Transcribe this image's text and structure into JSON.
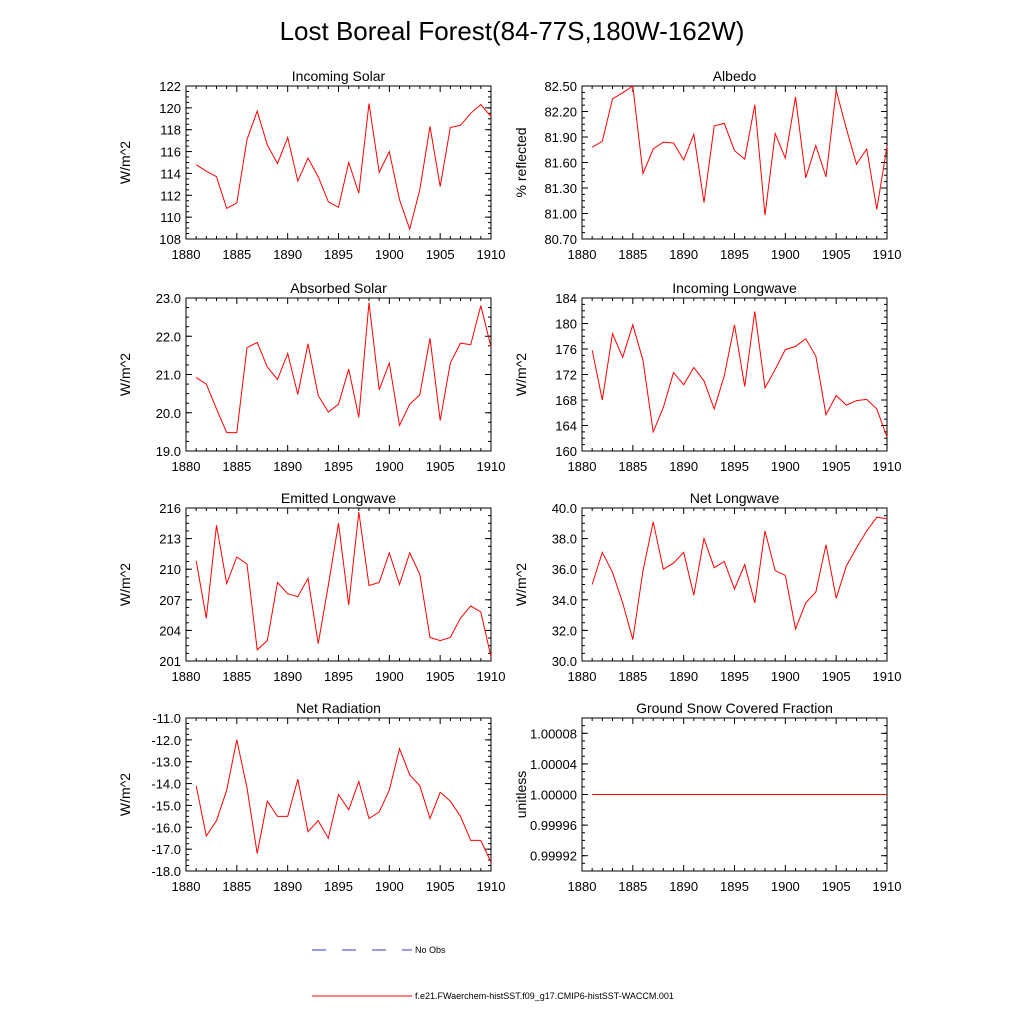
{
  "title": "Lost Boreal Forest(84-77S,180W-162W)",
  "colors": {
    "model": "#ff0000",
    "obs": "#3333cc",
    "axis": "#000000"
  },
  "legend": {
    "obs_label": "No Obs",
    "model_label": "f.e21.FWaerchem-histSST.f09_g17.CMIP6-histSST-WACCM.001"
  },
  "chart_data": [
    {
      "type": "line",
      "title": "Incoming Solar",
      "ylabel": "W/m^2",
      "xlim": [
        1880,
        1910
      ],
      "xticks": [
        "1880",
        "1885",
        "1890",
        "1895",
        "1900",
        "1905",
        "1910"
      ],
      "ylim": [
        108,
        122
      ],
      "yticks": [
        "108",
        "110",
        "112",
        "114",
        "116",
        "118",
        "120",
        "122"
      ],
      "x": [
        1881,
        1882,
        1883,
        1884,
        1885,
        1886,
        1887,
        1888,
        1889,
        1890,
        1891,
        1892,
        1893,
        1894,
        1895,
        1896,
        1897,
        1898,
        1899,
        1900,
        1901,
        1902,
        1903,
        1904,
        1905,
        1906,
        1907,
        1908,
        1909,
        1910
      ],
      "series": [
        {
          "values": [
            114.8,
            114.2,
            113.7,
            110.8,
            111.3,
            117.1,
            119.7,
            116.6,
            114.9,
            117.3,
            113.3,
            115.4,
            113.7,
            111.4,
            110.9,
            115.0,
            112.2,
            120.4,
            114.1,
            116.0,
            111.6,
            108.9,
            112.5,
            118.3,
            112.8,
            118.2,
            118.4,
            119.5,
            120.3,
            119.2
          ]
        }
      ]
    },
    {
      "type": "line",
      "title": "Albedo",
      "ylabel": "% reflected",
      "xlim": [
        1880,
        1910
      ],
      "xticks": [
        "1880",
        "1885",
        "1890",
        "1895",
        "1900",
        "1905",
        "1910"
      ],
      "ylim": [
        80.7,
        82.5
      ],
      "yticks": [
        "80.70",
        "81.00",
        "81.30",
        "81.60",
        "81.90",
        "82.20",
        "82.50"
      ],
      "x": [
        1881,
        1882,
        1883,
        1884,
        1885,
        1886,
        1887,
        1888,
        1889,
        1890,
        1891,
        1892,
        1893,
        1894,
        1895,
        1896,
        1897,
        1898,
        1899,
        1900,
        1901,
        1902,
        1903,
        1904,
        1905,
        1906,
        1907,
        1908,
        1909,
        1910
      ],
      "series": [
        {
          "values": [
            81.78,
            81.85,
            82.35,
            82.42,
            82.5,
            81.47,
            81.76,
            81.84,
            81.83,
            81.63,
            81.93,
            81.13,
            82.03,
            82.06,
            81.74,
            81.64,
            82.28,
            80.98,
            81.94,
            81.65,
            82.37,
            81.42,
            81.8,
            81.43,
            82.45,
            82.0,
            81.58,
            81.76,
            81.05,
            81.79
          ]
        }
      ]
    },
    {
      "type": "line",
      "title": "Absorbed Solar",
      "ylabel": "W/m^2",
      "xlim": [
        1880,
        1910
      ],
      "xticks": [
        "1880",
        "1885",
        "1890",
        "1895",
        "1900",
        "1905",
        "1910"
      ],
      "ylim": [
        19.0,
        23.0
      ],
      "yticks": [
        "19.0",
        "20.0",
        "21.0",
        "22.0",
        "23.0"
      ],
      "x": [
        1881,
        1882,
        1883,
        1884,
        1885,
        1886,
        1887,
        1888,
        1889,
        1890,
        1891,
        1892,
        1893,
        1894,
        1895,
        1896,
        1897,
        1898,
        1899,
        1900,
        1901,
        1902,
        1903,
        1904,
        1905,
        1906,
        1907,
        1908,
        1909,
        1910
      ],
      "series": [
        {
          "values": [
            20.92,
            20.75,
            20.1,
            19.48,
            19.48,
            21.7,
            21.84,
            21.2,
            20.87,
            21.55,
            20.48,
            21.8,
            20.45,
            20.02,
            20.22,
            21.14,
            19.88,
            22.88,
            20.6,
            21.3,
            19.67,
            20.22,
            20.47,
            21.95,
            19.8,
            21.3,
            21.82,
            21.78,
            22.8,
            21.72
          ]
        }
      ]
    },
    {
      "type": "line",
      "title": "Incoming Longwave",
      "ylabel": "W/m^2",
      "xlim": [
        1880,
        1910
      ],
      "xticks": [
        "1880",
        "1885",
        "1890",
        "1895",
        "1900",
        "1905",
        "1910"
      ],
      "ylim": [
        160,
        184
      ],
      "yticks": [
        "160",
        "164",
        "168",
        "172",
        "176",
        "180",
        "184"
      ],
      "x": [
        1881,
        1882,
        1883,
        1884,
        1885,
        1886,
        1887,
        1888,
        1889,
        1890,
        1891,
        1892,
        1893,
        1894,
        1895,
        1896,
        1897,
        1898,
        1899,
        1900,
        1901,
        1902,
        1903,
        1904,
        1905,
        1906,
        1907,
        1908,
        1909,
        1910
      ],
      "series": [
        {
          "values": [
            175.8,
            168.0,
            178.4,
            174.7,
            179.8,
            174.2,
            163.0,
            166.8,
            172.3,
            170.4,
            173.1,
            171.0,
            166.6,
            171.8,
            179.8,
            170.1,
            181.9,
            169.9,
            172.8,
            175.9,
            176.4,
            177.6,
            174.9,
            165.7,
            168.7,
            167.2,
            167.9,
            168.1,
            166.6,
            162.2
          ]
        }
      ]
    },
    {
      "type": "line",
      "title": "Emitted Longwave",
      "ylabel": "W/m^2",
      "xlim": [
        1880,
        1910
      ],
      "xticks": [
        "1880",
        "1885",
        "1890",
        "1895",
        "1900",
        "1905",
        "1910"
      ],
      "ylim": [
        201,
        216
      ],
      "yticks": [
        "201",
        "204",
        "207",
        "210",
        "213",
        "216"
      ],
      "x": [
        1881,
        1882,
        1883,
        1884,
        1885,
        1886,
        1887,
        1888,
        1889,
        1890,
        1891,
        1892,
        1893,
        1894,
        1895,
        1896,
        1897,
        1898,
        1899,
        1900,
        1901,
        1902,
        1903,
        1904,
        1905,
        1906,
        1907,
        1908,
        1909,
        1910
      ],
      "series": [
        {
          "values": [
            210.8,
            205.2,
            214.3,
            208.6,
            211.2,
            210.5,
            202.1,
            203.0,
            208.7,
            207.6,
            207.3,
            209.1,
            202.7,
            208.4,
            214.5,
            206.5,
            215.6,
            208.4,
            208.7,
            211.6,
            208.5,
            211.6,
            209.5,
            203.3,
            203.0,
            203.3,
            205.2,
            206.4,
            205.8,
            201.4
          ]
        }
      ]
    },
    {
      "type": "line",
      "title": "Net Longwave",
      "ylabel": "W/m^2",
      "xlim": [
        1880,
        1910
      ],
      "xticks": [
        "1880",
        "1885",
        "1890",
        "1895",
        "1900",
        "1905",
        "1910"
      ],
      "ylim": [
        30.0,
        40.0
      ],
      "yticks": [
        "30.0",
        "32.0",
        "34.0",
        "36.0",
        "38.0",
        "40.0"
      ],
      "x": [
        1881,
        1882,
        1883,
        1884,
        1885,
        1886,
        1887,
        1888,
        1889,
        1890,
        1891,
        1892,
        1893,
        1894,
        1895,
        1896,
        1897,
        1898,
        1899,
        1900,
        1901,
        1902,
        1903,
        1904,
        1905,
        1906,
        1907,
        1908,
        1909,
        1910
      ],
      "series": [
        {
          "values": [
            35.0,
            37.1,
            35.8,
            33.8,
            31.4,
            35.9,
            39.1,
            36.0,
            36.4,
            37.1,
            34.3,
            38.0,
            36.1,
            36.5,
            34.7,
            36.3,
            33.8,
            38.5,
            35.9,
            35.6,
            32.1,
            33.8,
            34.5,
            37.6,
            34.1,
            36.2,
            37.4,
            38.5,
            39.4,
            39.3
          ]
        }
      ]
    },
    {
      "type": "line",
      "title": "Net Radiation",
      "ylabel": "W/m^2",
      "xlim": [
        1880,
        1910
      ],
      "xticks": [
        "1880",
        "1885",
        "1890",
        "1895",
        "1900",
        "1905",
        "1910"
      ],
      "ylim": [
        -18.0,
        -11.0
      ],
      "yticks": [
        "-18.0",
        "-17.0",
        "-16.0",
        "-15.0",
        "-14.0",
        "-13.0",
        "-12.0",
        "-11.0"
      ],
      "x": [
        1881,
        1882,
        1883,
        1884,
        1885,
        1886,
        1887,
        1888,
        1889,
        1890,
        1891,
        1892,
        1893,
        1894,
        1895,
        1896,
        1897,
        1898,
        1899,
        1900,
        1901,
        1902,
        1903,
        1904,
        1905,
        1906,
        1907,
        1908,
        1909,
        1910
      ],
      "series": [
        {
          "values": [
            -14.1,
            -16.4,
            -15.7,
            -14.3,
            -12.0,
            -14.2,
            -17.2,
            -14.8,
            -15.5,
            -15.5,
            -13.8,
            -16.2,
            -15.7,
            -16.5,
            -14.5,
            -15.2,
            -13.9,
            -15.6,
            -15.3,
            -14.3,
            -12.4,
            -13.6,
            -14.1,
            -15.6,
            -14.4,
            -14.8,
            -15.5,
            -16.6,
            -16.6,
            -17.6
          ]
        }
      ]
    },
    {
      "type": "line",
      "title": "Ground Snow Covered Fraction",
      "ylabel": "unitless",
      "xlim": [
        1880,
        1910
      ],
      "xticks": [
        "1880",
        "1885",
        "1890",
        "1895",
        "1900",
        "1905",
        "1910"
      ],
      "ylim": [
        0.9999,
        1.0001
      ],
      "yticks": [
        "0.99992",
        "0.99996",
        "1.00000",
        "1.00004",
        "1.00008"
      ],
      "ytickvals": [
        0.99992,
        0.99996,
        1.0,
        1.00004,
        1.00008
      ],
      "x": [
        1881,
        1882,
        1883,
        1884,
        1885,
        1886,
        1887,
        1888,
        1889,
        1890,
        1891,
        1892,
        1893,
        1894,
        1895,
        1896,
        1897,
        1898,
        1899,
        1900,
        1901,
        1902,
        1903,
        1904,
        1905,
        1906,
        1907,
        1908,
        1909,
        1910
      ],
      "series": [
        {
          "values": [
            1,
            1,
            1,
            1,
            1,
            1,
            1,
            1,
            1,
            1,
            1,
            1,
            1,
            1,
            1,
            1,
            1,
            1,
            1,
            1,
            1,
            1,
            1,
            1,
            1,
            1,
            1,
            1,
            1,
            1
          ]
        }
      ]
    }
  ]
}
